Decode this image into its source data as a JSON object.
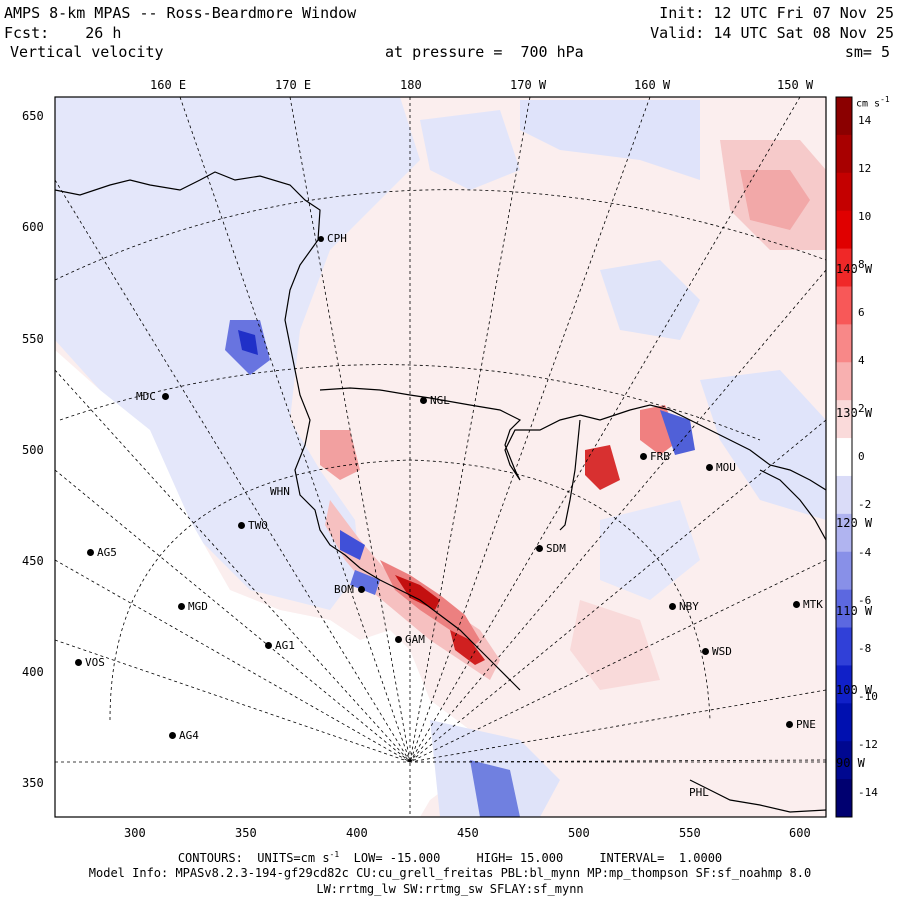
{
  "header": {
    "title": "AMPS 8-km MPAS -- Ross-Beardmore Window",
    "fcst_label": "Fcst:",
    "fcst_value": "26 h",
    "field": "Vertical velocity",
    "level_prefix": "at pressure =",
    "level_value": "700 hPa",
    "init": "Init: 12 UTC Fri 07 Nov 25",
    "valid": "Valid: 14 UTC Sat 08 Nov 25",
    "smoothing": "sm= 5"
  },
  "axes": {
    "top_lon_labels": [
      "160 E",
      "170 E",
      "180",
      "170 W",
      "160 W",
      "150 W"
    ],
    "right_lon_labels": [
      "140 W",
      "130 W",
      "120 W",
      "110 W",
      "100 W",
      "90 W"
    ],
    "x_ticks": [
      "300",
      "350",
      "400",
      "450",
      "500",
      "550",
      "600"
    ],
    "y_ticks": [
      "650",
      "600",
      "550",
      "500",
      "450",
      "400",
      "350"
    ]
  },
  "colorbar": {
    "units": "cm s",
    "units_exp": "-1",
    "labels": [
      "14",
      "12",
      "10",
      "8",
      "6",
      "4",
      "2",
      "0",
      "-2",
      "-4",
      "-6",
      "-8",
      "-10",
      "-12",
      "-14"
    ],
    "colors": [
      "#8b0000",
      "#a80000",
      "#c40000",
      "#e00000",
      "#f02828",
      "#f85858",
      "#f88888",
      "#f8b0b0",
      "#fadada",
      "#ffffff",
      "#dadcf8",
      "#b0b4f0",
      "#8890e8",
      "#5c68e0",
      "#3040d8",
      "#1020c8",
      "#0010b0",
      "#000890",
      "#000070"
    ]
  },
  "stations": [
    {
      "code": "CPH"
    },
    {
      "code": "NGL"
    },
    {
      "code": "MDC"
    },
    {
      "code": "FRB"
    },
    {
      "code": "MOU"
    },
    {
      "code": "WHN"
    },
    {
      "code": "TWO"
    },
    {
      "code": "AG5"
    },
    {
      "code": "SDM"
    },
    {
      "code": "BOM"
    },
    {
      "code": "MGD"
    },
    {
      "code": "NBY"
    },
    {
      "code": "MTK"
    },
    {
      "code": "GAM"
    },
    {
      "code": "WSD"
    },
    {
      "code": "AG1"
    },
    {
      "code": "VOS"
    },
    {
      "code": "PNE"
    },
    {
      "code": "AG4"
    },
    {
      "code": "PHL"
    }
  ],
  "footer": {
    "contours_label": "CONTOURS:",
    "units_label": "UNITS=cm s",
    "units_exp": "-1",
    "low_label": "LOW=",
    "low_value": "-15.000",
    "high_label": "HIGH=",
    "high_value": "15.000",
    "interval_label": "INTERVAL=",
    "interval_value": "1.0000",
    "model_info": "Model Info: MPASv8.2.3-194-gf29cd82c CU:cu_grell_freitas PBL:bl_mynn MP:mp_thompson SF:sf_noahmp 8.0",
    "model_info2": "LW:rrtmg_lw SW:rrtmg_sw SFLAY:sf_mynn"
  }
}
